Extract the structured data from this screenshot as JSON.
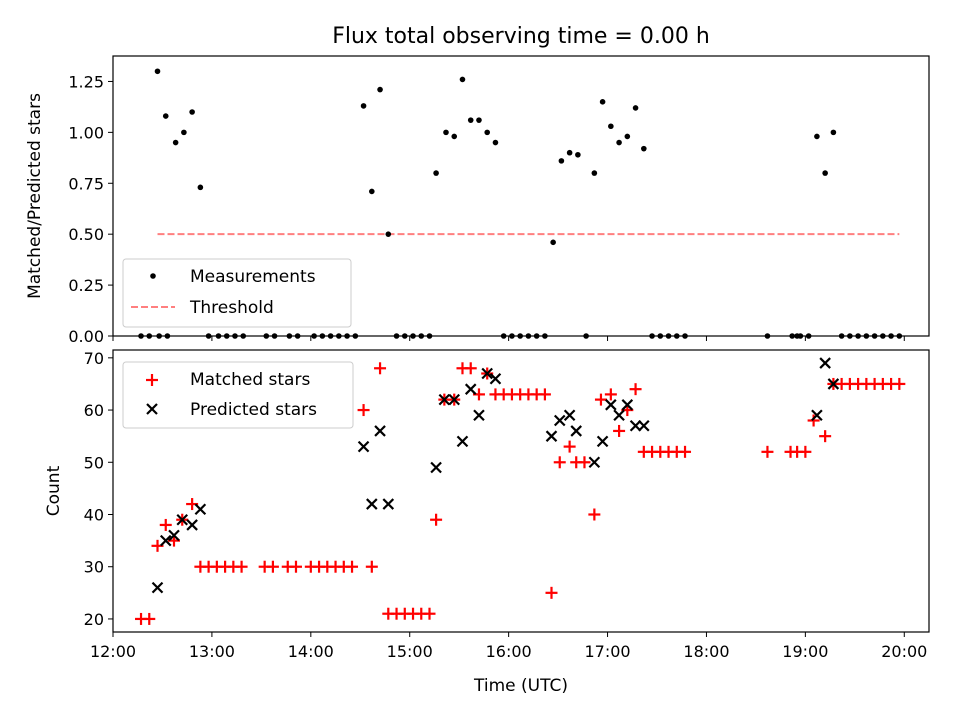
{
  "chart_data": [
    {
      "type": "scatter",
      "title": "Flux total observing time = 0.00 h",
      "xlabel": "",
      "ylabel": "Matched/Predicted stars",
      "xlim": [
        "12:00",
        "20:15"
      ],
      "ylim": [
        0,
        1.375
      ],
      "yticks": [
        "0.00",
        "0.25",
        "0.50",
        "0.75",
        "1.00",
        "1.25"
      ],
      "legend_position": "lower-left",
      "series": [
        {
          "name": "Measurements",
          "marker": "dot",
          "color": "#000000",
          "points": [
            [
              "12:17",
              0
            ],
            [
              "12:22",
              0
            ],
            [
              "12:28",
              0
            ],
            [
              "12:33",
              0
            ],
            [
              "12:27",
              1.3
            ],
            [
              "12:32",
              1.08
            ],
            [
              "12:38",
              0.95
            ],
            [
              "12:43",
              1.0
            ],
            [
              "12:48",
              1.1
            ],
            [
              "12:53",
              0.73
            ],
            [
              "12:58",
              0
            ],
            [
              "13:04",
              0
            ],
            [
              "13:09",
              0
            ],
            [
              "13:14",
              0
            ],
            [
              "13:19",
              0
            ],
            [
              "13:33",
              0
            ],
            [
              "13:38",
              0
            ],
            [
              "13:47",
              0
            ],
            [
              "13:52",
              0
            ],
            [
              "14:02",
              0
            ],
            [
              "14:07",
              0
            ],
            [
              "14:12",
              0
            ],
            [
              "14:17",
              0
            ],
            [
              "14:22",
              0
            ],
            [
              "14:27",
              0
            ],
            [
              "14:32",
              1.13
            ],
            [
              "14:37",
              0.71
            ],
            [
              "14:42",
              1.21
            ],
            [
              "14:47",
              0.5
            ],
            [
              "14:52",
              0
            ],
            [
              "14:57",
              0
            ],
            [
              "15:02",
              0
            ],
            [
              "15:07",
              0
            ],
            [
              "15:12",
              0
            ],
            [
              "15:16",
              0.8
            ],
            [
              "15:22",
              1.0
            ],
            [
              "15:27",
              0.98
            ],
            [
              "15:32",
              1.26
            ],
            [
              "15:37",
              1.06
            ],
            [
              "15:42",
              1.06
            ],
            [
              "15:47",
              1.0
            ],
            [
              "15:52",
              0.95
            ],
            [
              "15:57",
              0
            ],
            [
              "16:02",
              0
            ],
            [
              "16:07",
              0
            ],
            [
              "16:12",
              0
            ],
            [
              "16:17",
              0
            ],
            [
              "16:22",
              0
            ],
            [
              "16:27",
              0.46
            ],
            [
              "16:32",
              0.86
            ],
            [
              "16:37",
              0.9
            ],
            [
              "16:42",
              0.89
            ],
            [
              "16:47",
              0
            ],
            [
              "16:52",
              0.8
            ],
            [
              "16:57",
              1.15
            ],
            [
              "17:02",
              1.03
            ],
            [
              "17:07",
              0.95
            ],
            [
              "17:12",
              0.98
            ],
            [
              "17:17",
              1.12
            ],
            [
              "17:22",
              0.92
            ],
            [
              "17:27",
              0
            ],
            [
              "17:32",
              0
            ],
            [
              "17:37",
              0
            ],
            [
              "17:42",
              0
            ],
            [
              "17:47",
              0
            ],
            [
              "18:37",
              0
            ],
            [
              "18:52",
              0
            ],
            [
              "18:55",
              0
            ],
            [
              "18:57",
              0
            ],
            [
              "19:02",
              0
            ],
            [
              "19:07",
              0.98
            ],
            [
              "19:12",
              0.8
            ],
            [
              "19:17",
              1.0
            ],
            [
              "19:22",
              0
            ],
            [
              "19:27",
              0
            ],
            [
              "19:32",
              0
            ],
            [
              "19:37",
              0
            ],
            [
              "19:42",
              0
            ],
            [
              "19:47",
              0
            ],
            [
              "19:52",
              0
            ],
            [
              "19:57",
              0
            ]
          ]
        },
        {
          "name": "Threshold",
          "marker": "dashed-line",
          "color": "#ff7f7f",
          "points": [
            [
              "12:27",
              0.5
            ],
            [
              "19:57",
              0.5
            ]
          ]
        }
      ]
    },
    {
      "type": "scatter",
      "title": "",
      "xlabel": "Time (UTC)",
      "ylabel": "Count",
      "xlim": [
        "12:00",
        "20:15"
      ],
      "ylim": [
        17.5,
        71.5
      ],
      "yticks": [
        "20",
        "30",
        "40",
        "50",
        "60",
        "70"
      ],
      "xticks": [
        "12:00",
        "13:00",
        "14:00",
        "15:00",
        "16:00",
        "17:00",
        "18:00",
        "19:00",
        "20:00"
      ],
      "legend_position": "upper-left",
      "series": [
        {
          "name": "Matched stars",
          "marker": "plus",
          "color": "#ff0000",
          "points": [
            [
              "12:17",
              20
            ],
            [
              "12:22",
              20
            ],
            [
              "12:27",
              34
            ],
            [
              "12:32",
              38
            ],
            [
              "12:37",
              35
            ],
            [
              "12:42",
              39
            ],
            [
              "12:48",
              42
            ],
            [
              "12:53",
              30
            ],
            [
              "12:58",
              30
            ],
            [
              "13:03",
              30
            ],
            [
              "13:08",
              30
            ],
            [
              "13:13",
              30
            ],
            [
              "13:18",
              30
            ],
            [
              "13:32",
              30
            ],
            [
              "13:37",
              30
            ],
            [
              "13:46",
              30
            ],
            [
              "13:51",
              30
            ],
            [
              "14:00",
              30
            ],
            [
              "14:05",
              30
            ],
            [
              "14:10",
              30
            ],
            [
              "14:15",
              30
            ],
            [
              "14:20",
              30
            ],
            [
              "14:25",
              30
            ],
            [
              "14:32",
              60
            ],
            [
              "14:37",
              30
            ],
            [
              "14:42",
              68
            ],
            [
              "14:47",
              21
            ],
            [
              "14:52",
              21
            ],
            [
              "14:57",
              21
            ],
            [
              "15:02",
              21
            ],
            [
              "15:07",
              21
            ],
            [
              "15:12",
              21
            ],
            [
              "15:16",
              39
            ],
            [
              "15:21",
              62
            ],
            [
              "15:27",
              62
            ],
            [
              "15:32",
              68
            ],
            [
              "15:37",
              68
            ],
            [
              "15:42",
              63
            ],
            [
              "15:47",
              67
            ],
            [
              "15:52",
              63
            ],
            [
              "15:57",
              63
            ],
            [
              "16:02",
              63
            ],
            [
              "16:07",
              63
            ],
            [
              "16:12",
              63
            ],
            [
              "16:17",
              63
            ],
            [
              "16:22",
              63
            ],
            [
              "16:26",
              25
            ],
            [
              "16:31",
              50
            ],
            [
              "16:37",
              53
            ],
            [
              "16:41",
              50
            ],
            [
              "16:46",
              50
            ],
            [
              "16:52",
              40
            ],
            [
              "16:56",
              62
            ],
            [
              "17:02",
              63
            ],
            [
              "17:07",
              56
            ],
            [
              "17:12",
              60
            ],
            [
              "17:17",
              64
            ],
            [
              "17:22",
              52
            ],
            [
              "17:27",
              52
            ],
            [
              "17:32",
              52
            ],
            [
              "17:37",
              52
            ],
            [
              "17:42",
              52
            ],
            [
              "17:47",
              52
            ],
            [
              "18:37",
              52
            ],
            [
              "18:51",
              52
            ],
            [
              "18:55",
              52
            ],
            [
              "19:00",
              52
            ],
            [
              "19:05",
              58
            ],
            [
              "19:12",
              55
            ],
            [
              "19:17",
              65
            ],
            [
              "19:22",
              65
            ],
            [
              "19:27",
              65
            ],
            [
              "19:32",
              65
            ],
            [
              "19:37",
              65
            ],
            [
              "19:42",
              65
            ],
            [
              "19:47",
              65
            ],
            [
              "19:52",
              65
            ],
            [
              "19:57",
              65
            ]
          ]
        },
        {
          "name": "Predicted stars",
          "marker": "x",
          "color": "#000000",
          "points": [
            [
              "12:27",
              26
            ],
            [
              "12:32",
              35
            ],
            [
              "12:37",
              36
            ],
            [
              "12:42",
              39
            ],
            [
              "12:48",
              38
            ],
            [
              "12:53",
              41
            ],
            [
              "14:32",
              53
            ],
            [
              "14:37",
              42
            ],
            [
              "14:42",
              56
            ],
            [
              "14:47",
              42
            ],
            [
              "15:16",
              49
            ],
            [
              "15:21",
              62
            ],
            [
              "15:27",
              62
            ],
            [
              "15:32",
              54
            ],
            [
              "15:37",
              64
            ],
            [
              "15:42",
              59
            ],
            [
              "15:47",
              67
            ],
            [
              "15:52",
              66
            ],
            [
              "16:26",
              55
            ],
            [
              "16:31",
              58
            ],
            [
              "16:37",
              59
            ],
            [
              "16:41",
              56
            ],
            [
              "16:52",
              50
            ],
            [
              "16:57",
              54
            ],
            [
              "17:02",
              61
            ],
            [
              "17:07",
              59
            ],
            [
              "17:12",
              61
            ],
            [
              "17:17",
              57
            ],
            [
              "17:22",
              57
            ],
            [
              "19:07",
              59
            ],
            [
              "19:12",
              69
            ],
            [
              "19:17",
              65
            ]
          ]
        }
      ]
    }
  ]
}
